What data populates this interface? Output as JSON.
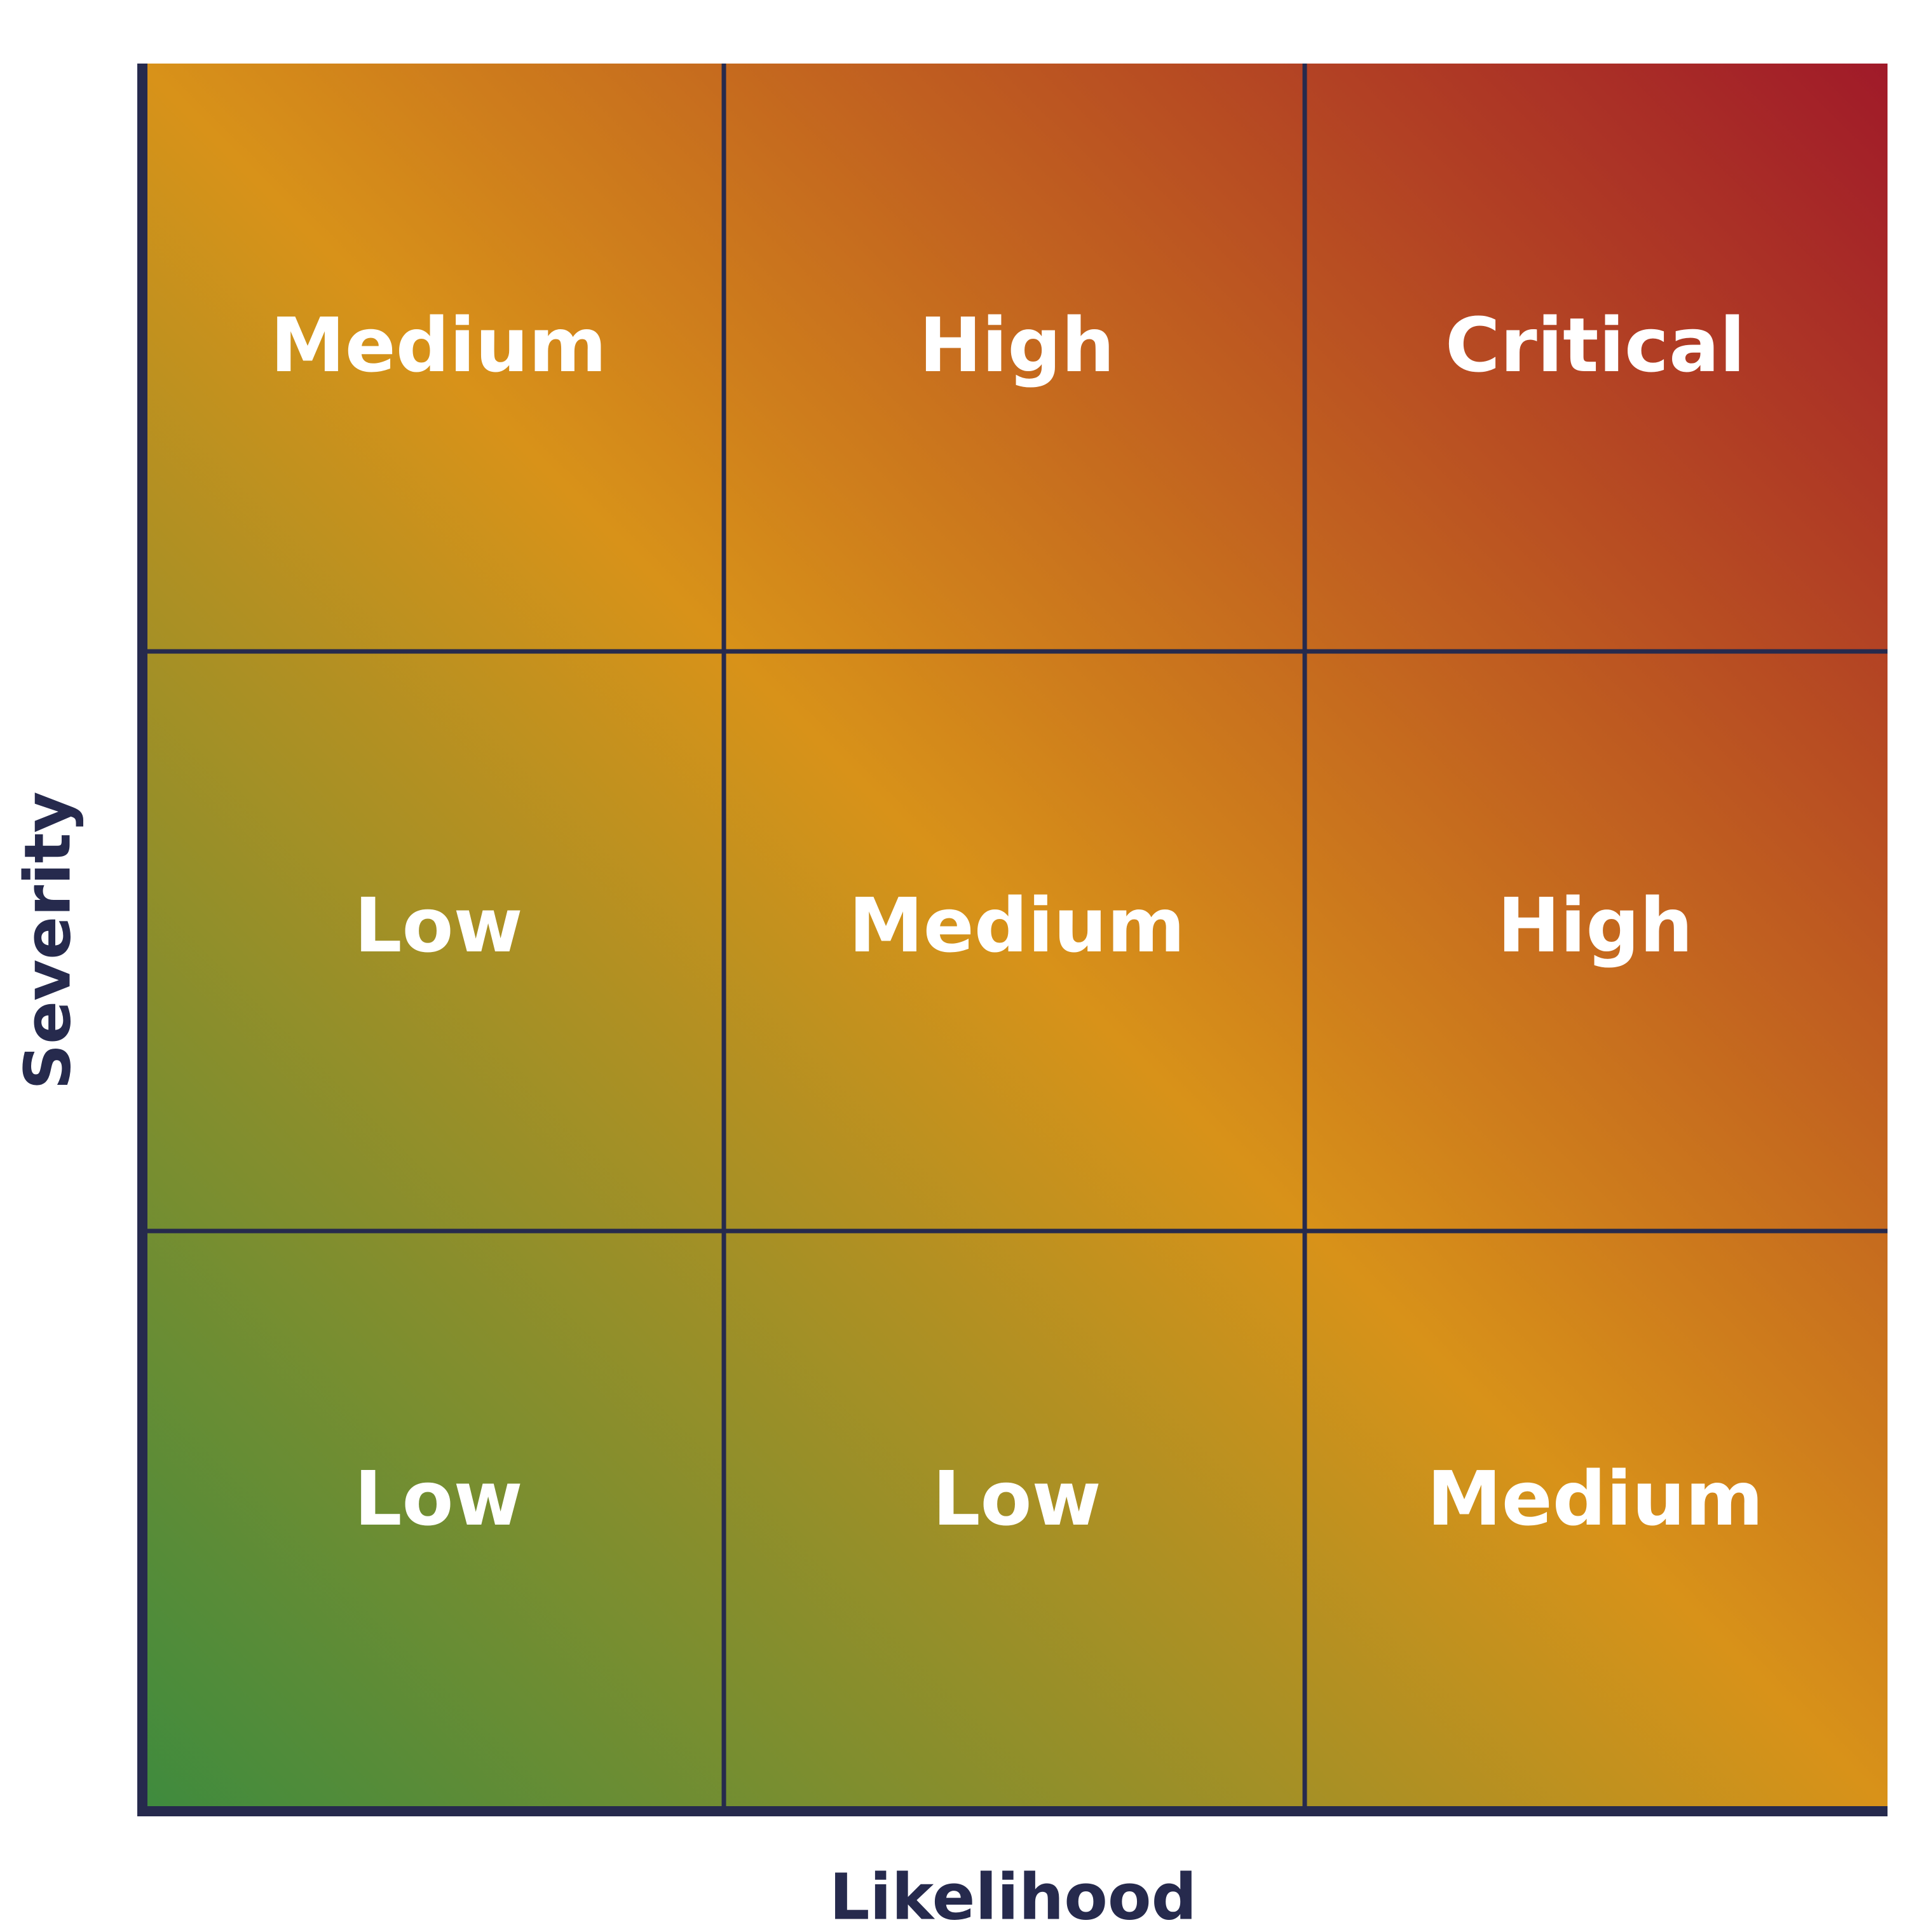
{
  "axes": {
    "x_label": "Likelihood",
    "y_label": "Severity"
  },
  "colors": {
    "low_corner": "#3e8b3e",
    "mid_band": "#d89219",
    "high_corner": "#a01a29",
    "grid_line": "#262a4d",
    "label_text": "#ffffff"
  },
  "matrix": {
    "rows": [
      {
        "cells": [
          {
            "label": "Medium"
          },
          {
            "label": "High"
          },
          {
            "label": "Critical"
          }
        ]
      },
      {
        "cells": [
          {
            "label": "Low"
          },
          {
            "label": "Medium"
          },
          {
            "label": "High"
          }
        ]
      },
      {
        "cells": [
          {
            "label": "Low"
          },
          {
            "label": "Low"
          },
          {
            "label": "Medium"
          }
        ]
      }
    ]
  }
}
